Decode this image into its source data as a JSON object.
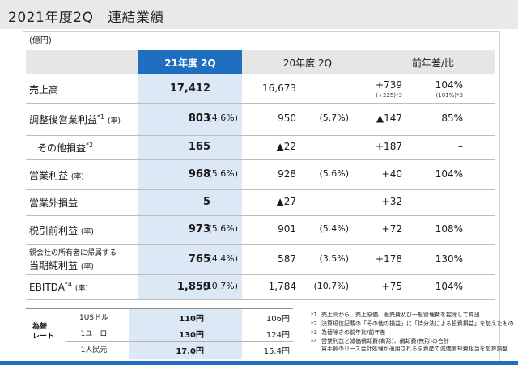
{
  "title": "2021年度2Q　連結業績",
  "unit": "(億円)",
  "headers": {
    "current": "21年度 2Q",
    "previous": "20年度 2Q",
    "diff": "前年差/比"
  },
  "rows": [
    {
      "label": "売上高",
      "sup": "",
      "rate_note": "",
      "cur": "17,412",
      "cur_rate": "",
      "prev": "16,673",
      "prev_rate": "",
      "diff": "+739",
      "diff_note": "(+225)*3",
      "pct": "104%",
      "pct_note": "(101%)*3"
    },
    {
      "label": "調整後営業利益",
      "sup": "*1",
      "rate_note": "(率)",
      "cur": "803",
      "cur_rate": "(4.6%)",
      "prev": "950",
      "prev_rate": "(5.7%)",
      "diff": "▲147",
      "diff_note": "",
      "pct": "85%",
      "pct_note": ""
    },
    {
      "label": "その他損益",
      "sup": "*2",
      "rate_note": "",
      "cur": "165",
      "cur_rate": "",
      "prev": "▲22",
      "prev_rate": "",
      "diff": "+187",
      "diff_note": "",
      "pct": "–",
      "pct_note": ""
    },
    {
      "label": "営業利益",
      "sup": "",
      "rate_note": "(率)",
      "cur": "968",
      "cur_rate": "(5.6%)",
      "prev": "928",
      "prev_rate": "(5.6%)",
      "diff": "+40",
      "diff_note": "",
      "pct": "104%",
      "pct_note": ""
    },
    {
      "label": "営業外損益",
      "sup": "",
      "rate_note": "",
      "cur": "5",
      "cur_rate": "",
      "prev": "▲27",
      "prev_rate": "",
      "diff": "+32",
      "diff_note": "",
      "pct": "–",
      "pct_note": ""
    },
    {
      "label": "税引前利益",
      "sup": "",
      "rate_note": "(率)",
      "cur": "973",
      "cur_rate": "(5.6%)",
      "prev": "901",
      "prev_rate": "(5.4%)",
      "diff": "+72",
      "diff_note": "",
      "pct": "108%",
      "pct_note": ""
    },
    {
      "label": "当期純利益",
      "sub_label": "親会社の所有者に帰属する",
      "sup": "",
      "rate_note": "(率)",
      "cur": "765",
      "cur_rate": "(4.4%)",
      "prev": "587",
      "prev_rate": "(3.5%)",
      "diff": "+178",
      "diff_note": "",
      "pct": "130%",
      "pct_note": ""
    },
    {
      "label": "EBITDA",
      "sup": "*4",
      "rate_note": "(率)",
      "cur": "1,859",
      "cur_rate": "(10.7%)",
      "prev": "1,784",
      "prev_rate": "(10.7%)",
      "diff": "+75",
      "diff_note": "",
      "pct": "104%",
      "pct_note": ""
    }
  ],
  "fx": {
    "label_line1": "為替",
    "label_line2": "レート",
    "rows": [
      {
        "name": "1USドル",
        "cur": "110円",
        "prev": "106円"
      },
      {
        "name": "1ユーロ",
        "cur": "130円",
        "prev": "124円"
      },
      {
        "name": "1人民元",
        "cur": "17.0円",
        "prev": "15.4円"
      }
    ]
  },
  "footnotes": [
    {
      "mark": "*1",
      "text": "売上高から、売上原価、販売費及び一般管理費を控除して算出"
    },
    {
      "mark": "*2",
      "text": "決算短信記載の「その他の損益」に「持分法による投資損益」を加えたもの"
    },
    {
      "mark": "*3",
      "text": "為替除きの前年比/前年差"
    },
    {
      "mark": "*4",
      "text": "営業利益と減価償却費(有形)、償却費(無形)の合計"
    },
    {
      "mark": "",
      "text": "賃手側のリース会計処理が適用される原資産の減価償却費相当を加算調整"
    }
  ]
}
